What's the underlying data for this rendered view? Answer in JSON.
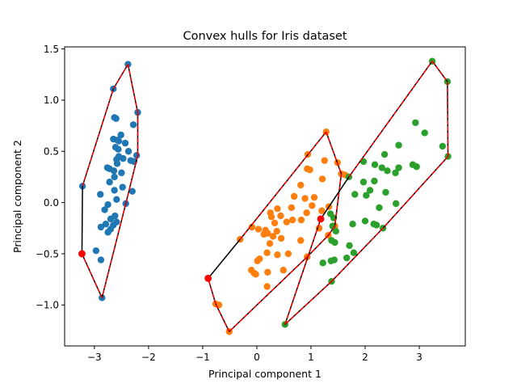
{
  "chart_data": {
    "type": "scatter",
    "title": "Convex hulls for Iris dataset",
    "xlabel": "Principal component 1",
    "ylabel": "Principal component 2",
    "xlim": [
      -3.55,
      3.85
    ],
    "ylim": [
      -1.4,
      1.52
    ],
    "xticks": [
      -3,
      -2,
      -1,
      0,
      1,
      2,
      3
    ],
    "yticks": [
      -1.0,
      -0.5,
      0.0,
      0.5,
      1.0,
      1.5
    ],
    "xtick_labels": [
      "−3",
      "−2",
      "−1",
      "0",
      "1",
      "2",
      "3"
    ],
    "ytick_labels": [
      "−1.0",
      "−0.5",
      "0.0",
      "0.5",
      "1.0",
      "1.5"
    ],
    "grid": false,
    "colors": {
      "series_1": "#1f77b4",
      "series_2": "#ff7f0e",
      "series_3": "#2ca02c",
      "hull_full": "#000000",
      "hull_dashed": "#ff0000",
      "hull_extra_vertex": "#ff0000"
    },
    "series": [
      {
        "color": "#1f77b4",
        "points": [
          [
            -2.38,
            1.35
          ],
          [
            -2.65,
            1.11
          ],
          [
            -2.2,
            0.88
          ],
          [
            -2.63,
            0.83
          ],
          [
            -2.6,
            0.82
          ],
          [
            -2.28,
            0.76
          ],
          [
            -2.51,
            0.66
          ],
          [
            -2.65,
            0.62
          ],
          [
            -2.58,
            0.61
          ],
          [
            -2.55,
            0.6
          ],
          [
            -2.43,
            0.58
          ],
          [
            -2.61,
            0.54
          ],
          [
            -2.56,
            0.52
          ],
          [
            -2.37,
            0.5
          ],
          [
            -2.22,
            0.46
          ],
          [
            -2.55,
            0.45
          ],
          [
            -2.47,
            0.43
          ],
          [
            -2.59,
            0.42
          ],
          [
            -2.33,
            0.41
          ],
          [
            -2.27,
            0.4
          ],
          [
            -2.58,
            0.38
          ],
          [
            -2.76,
            0.34
          ],
          [
            -2.72,
            0.33
          ],
          [
            -2.64,
            0.31
          ],
          [
            -2.5,
            0.29
          ],
          [
            -2.63,
            0.25
          ],
          [
            -2.72,
            0.2
          ],
          [
            -2.48,
            0.15
          ],
          [
            -2.63,
            0.12
          ],
          [
            -2.3,
            0.11
          ],
          [
            -2.89,
            0.08
          ],
          [
            -2.59,
            0.03
          ],
          [
            -2.42,
            -0.01
          ],
          [
            -2.75,
            -0.02
          ],
          [
            -2.81,
            -0.07
          ],
          [
            -2.62,
            -0.13
          ],
          [
            -2.7,
            -0.16
          ],
          [
            -2.59,
            -0.19
          ],
          [
            -2.79,
            -0.21
          ],
          [
            -2.65,
            -0.22
          ],
          [
            -2.7,
            -0.26
          ],
          [
            -2.88,
            -0.24
          ],
          [
            -2.75,
            -0.29
          ],
          [
            -2.97,
            -0.47
          ],
          [
            -2.88,
            -0.56
          ],
          [
            -3.22,
            0.16
          ],
          [
            -3.23,
            -0.5
          ],
          [
            -2.86,
            -0.93
          ]
        ]
      },
      {
        "color": "#ff7f0e",
        "points": [
          [
            1.28,
            0.69
          ],
          [
            0.94,
            0.47
          ],
          [
            1.25,
            0.41
          ],
          [
            1.49,
            0.39
          ],
          [
            0.93,
            0.33
          ],
          [
            0.98,
            0.32
          ],
          [
            1.21,
            0.23
          ],
          [
            0.81,
            0.17
          ],
          [
            1.56,
            0.28
          ],
          [
            1.63,
            0.27
          ],
          [
            1.06,
            0.05
          ],
          [
            0.69,
            0.06
          ],
          [
            0.89,
            0.04
          ],
          [
            1.02,
            -0.03
          ],
          [
            1.33,
            -0.04
          ],
          [
            0.64,
            -0.05
          ],
          [
            0.38,
            -0.06
          ],
          [
            0.92,
            -0.1
          ],
          [
            0.25,
            -0.1
          ],
          [
            1.2,
            -0.08
          ],
          [
            0.44,
            -0.13
          ],
          [
            0.27,
            -0.14
          ],
          [
            0.66,
            -0.17
          ],
          [
            0.82,
            -0.17
          ],
          [
            0.55,
            -0.19
          ],
          [
            0.33,
            -0.2
          ],
          [
            -0.09,
            -0.24
          ],
          [
            1.44,
            -0.23
          ],
          [
            1.15,
            -0.25
          ],
          [
            0.03,
            -0.26
          ],
          [
            0.16,
            -0.27
          ],
          [
            0.37,
            -0.28
          ],
          [
            0.2,
            -0.3
          ],
          [
            0.13,
            -0.31
          ],
          [
            0.3,
            -0.33
          ],
          [
            0.81,
            -0.37
          ],
          [
            1.32,
            -0.32
          ],
          [
            0.45,
            -0.35
          ],
          [
            0.24,
            -0.4
          ],
          [
            -0.31,
            -0.36
          ],
          [
            0.19,
            -0.49
          ],
          [
            0.58,
            -0.5
          ],
          [
            0.38,
            -0.51
          ],
          [
            0.05,
            -0.55
          ],
          [
            0.01,
            -0.57
          ],
          [
            0.93,
            -0.53
          ],
          [
            -0.1,
            -0.66
          ],
          [
            0.2,
            -0.68
          ],
          [
            0.49,
            -0.66
          ],
          [
            -0.02,
            -0.7
          ],
          [
            -0.05,
            -0.69
          ],
          [
            0.19,
            -0.82
          ],
          [
            -0.76,
            -0.99
          ],
          [
            -0.7,
            -1.0
          ],
          [
            -0.51,
            -1.26
          ],
          [
            -0.9,
            -0.74
          ],
          [
            1.18,
            -0.16
          ]
        ]
      },
      {
        "color": "#2ca02c",
        "points": [
          [
            3.24,
            1.38
          ],
          [
            3.52,
            1.18
          ],
          [
            2.93,
            0.78
          ],
          [
            3.1,
            0.68
          ],
          [
            2.62,
            0.56
          ],
          [
            2.36,
            0.47
          ],
          [
            3.43,
            0.55
          ],
          [
            3.53,
            0.45
          ],
          [
            1.97,
            0.4
          ],
          [
            2.18,
            0.37
          ],
          [
            2.31,
            0.34
          ],
          [
            2.62,
            0.34
          ],
          [
            2.41,
            0.31
          ],
          [
            2.56,
            0.29
          ],
          [
            2.88,
            0.37
          ],
          [
            2.95,
            0.35
          ],
          [
            1.7,
            0.25
          ],
          [
            1.97,
            0.2
          ],
          [
            2.17,
            0.21
          ],
          [
            2.09,
            0.12
          ],
          [
            2.38,
            0.1
          ],
          [
            1.81,
            0.08
          ],
          [
            2.02,
            0.07
          ],
          [
            2.57,
            -0.01
          ],
          [
            2.26,
            -0.05
          ],
          [
            1.36,
            -0.11
          ],
          [
            1.42,
            -0.15
          ],
          [
            2.0,
            -0.18
          ],
          [
            2.16,
            -0.21
          ],
          [
            2.21,
            -0.22
          ],
          [
            1.77,
            -0.21
          ],
          [
            1.4,
            -0.23
          ],
          [
            2.33,
            -0.25
          ],
          [
            1.46,
            -0.28
          ],
          [
            1.38,
            -0.37
          ],
          [
            1.44,
            -0.39
          ],
          [
            1.71,
            -0.42
          ],
          [
            1.79,
            -0.49
          ],
          [
            1.43,
            -0.56
          ],
          [
            1.66,
            -0.54
          ],
          [
            1.37,
            -0.57
          ],
          [
            1.22,
            -0.59
          ],
          [
            1.38,
            -0.77
          ],
          [
            0.52,
            -1.19
          ]
        ]
      }
    ],
    "hulls": [
      {
        "vertices": [
          [
            -2.38,
            1.35
          ],
          [
            -2.2,
            0.88
          ],
          [
            -2.2,
            0.46
          ],
          [
            -2.42,
            -0.01
          ],
          [
            -2.86,
            -0.93
          ],
          [
            -3.23,
            -0.5
          ],
          [
            -3.22,
            0.16
          ],
          [
            -2.65,
            1.11
          ],
          [
            -2.38,
            1.35
          ]
        ],
        "dashed_edges": [
          [
            0,
            1
          ],
          [
            1,
            2
          ],
          [
            2,
            3
          ],
          [
            3,
            4
          ],
          [
            4,
            5
          ],
          [
            6,
            7
          ],
          [
            7,
            8
          ]
        ],
        "extra_vertex": [
          -3.23,
          -0.5
        ]
      },
      {
        "vertices": [
          [
            1.28,
            0.69
          ],
          [
            1.56,
            0.28
          ],
          [
            1.44,
            -0.23
          ],
          [
            1.32,
            -0.32
          ],
          [
            0.93,
            -0.53
          ],
          [
            -0.51,
            -1.26
          ],
          [
            -0.76,
            -0.99
          ],
          [
            -0.9,
            -0.74
          ],
          [
            -0.31,
            -0.36
          ],
          [
            1.28,
            0.69
          ]
        ],
        "dashed_edges": [
          [
            0,
            1
          ],
          [
            1,
            2
          ],
          [
            2,
            3
          ],
          [
            3,
            4
          ],
          [
            4,
            5
          ],
          [
            5,
            6
          ],
          [
            6,
            7
          ],
          [
            8,
            9
          ]
        ],
        "extra_vertex": [
          -0.9,
          -0.74
        ]
      },
      {
        "vertices": [
          [
            3.24,
            1.38
          ],
          [
            3.52,
            1.18
          ],
          [
            3.53,
            0.45
          ],
          [
            2.33,
            -0.25
          ],
          [
            1.38,
            -0.77
          ],
          [
            0.52,
            -1.19
          ],
          [
            1.18,
            -0.16
          ],
          [
            1.7,
            0.25
          ],
          [
            3.24,
            1.38
          ]
        ],
        "dashed_edges": [
          [
            0,
            1
          ],
          [
            1,
            2
          ],
          [
            2,
            3
          ],
          [
            3,
            4
          ],
          [
            4,
            5
          ],
          [
            5,
            6
          ],
          [
            7,
            8
          ]
        ],
        "extra_vertex": [
          1.18,
          -0.16
        ]
      }
    ]
  }
}
